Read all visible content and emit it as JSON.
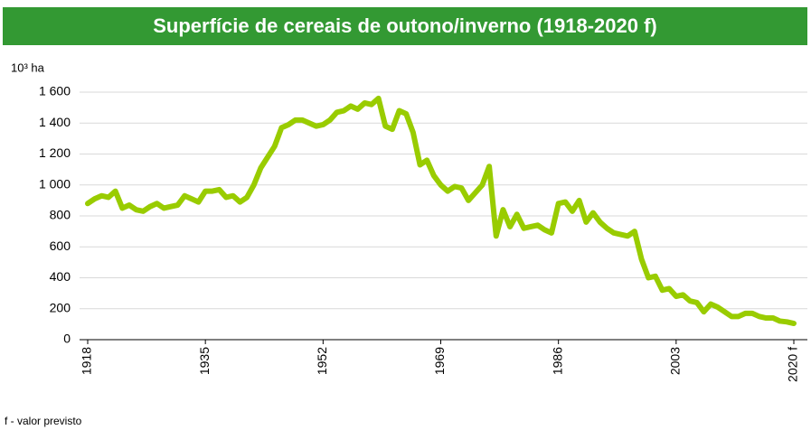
{
  "chart_data": {
    "type": "line",
    "title": "Superfície de cereais de outono/inverno (1918-2020 f)",
    "y_axis_label": "10³ ha",
    "footnote": "f - valor previsto",
    "x": [
      1918,
      1919,
      1920,
      1921,
      1922,
      1923,
      1924,
      1925,
      1926,
      1927,
      1928,
      1929,
      1930,
      1931,
      1932,
      1933,
      1934,
      1935,
      1936,
      1937,
      1938,
      1939,
      1940,
      1941,
      1942,
      1943,
      1944,
      1945,
      1946,
      1947,
      1948,
      1949,
      1950,
      1951,
      1952,
      1953,
      1954,
      1955,
      1956,
      1957,
      1958,
      1959,
      1960,
      1961,
      1962,
      1963,
      1964,
      1965,
      1966,
      1967,
      1968,
      1969,
      1970,
      1971,
      1972,
      1973,
      1974,
      1975,
      1976,
      1977,
      1978,
      1979,
      1980,
      1981,
      1982,
      1983,
      1984,
      1985,
      1986,
      1987,
      1988,
      1989,
      1990,
      1991,
      1992,
      1993,
      1994,
      1995,
      1996,
      1997,
      1998,
      1999,
      2000,
      2001,
      2002,
      2003,
      2004,
      2005,
      2006,
      2007,
      2008,
      2009,
      2010,
      2011,
      2012,
      2013,
      2014,
      2015,
      2016,
      2017,
      2018,
      2019,
      2020
    ],
    "series": [
      {
        "name": "Superfície",
        "color": "#99cc00",
        "values": [
          880,
          910,
          930,
          920,
          960,
          850,
          870,
          840,
          830,
          860,
          880,
          850,
          860,
          870,
          930,
          910,
          890,
          960,
          960,
          970,
          920,
          930,
          890,
          920,
          1000,
          1110,
          1180,
          1250,
          1370,
          1390,
          1420,
          1420,
          1400,
          1380,
          1390,
          1420,
          1470,
          1480,
          1510,
          1490,
          1530,
          1520,
          1560,
          1380,
          1360,
          1480,
          1460,
          1340,
          1130,
          1160,
          1060,
          1000,
          960,
          990,
          980,
          900,
          950,
          1000,
          1120,
          670,
          840,
          730,
          810,
          720,
          730,
          740,
          710,
          690,
          880,
          890,
          830,
          900,
          760,
          820,
          760,
          720,
          690,
          680,
          670,
          700,
          520,
          400,
          410,
          320,
          330,
          280,
          290,
          250,
          240,
          180,
          230,
          210,
          180,
          150,
          150,
          170,
          170,
          150,
          140,
          140,
          120,
          115,
          105
        ]
      }
    ],
    "xlim": [
      1918,
      2020
    ],
    "xticks": [
      1918,
      1935,
      1952,
      1969,
      1986,
      2003,
      {
        "value": 2020,
        "label": "2020 f"
      }
    ],
    "ylim": [
      0,
      1600
    ],
    "yticks": [
      0,
      200,
      400,
      600,
      800,
      {
        "value": 1000,
        "label": "1 000"
      },
      {
        "value": 1200,
        "label": "1 200"
      },
      {
        "value": 1400,
        "label": "1 400"
      },
      {
        "value": 1600,
        "label": "1 600"
      }
    ],
    "grid": true
  }
}
